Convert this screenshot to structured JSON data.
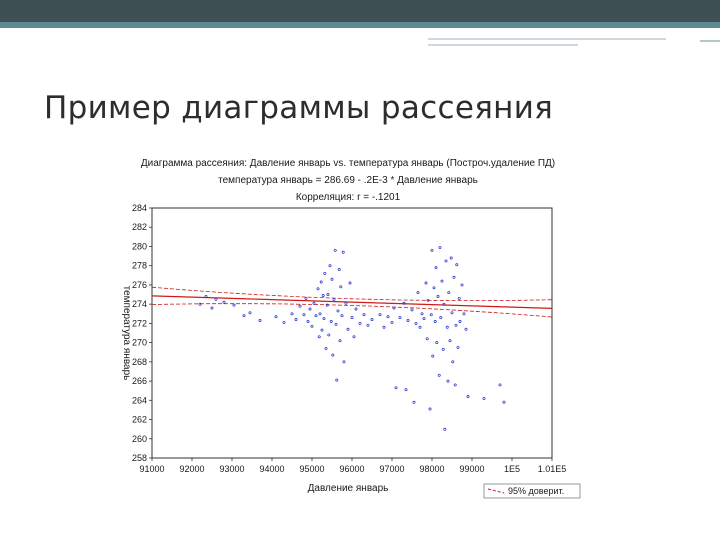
{
  "slide": {
    "title": "Пример диаграммы рассеяния"
  },
  "colors": {
    "topbar": "#3f5054",
    "accent": "#5f8a93",
    "points": "#1f2fd0",
    "regression": "#d01a1a",
    "text": "#1a1a1a"
  },
  "chart_data": {
    "type": "scatter",
    "title": "Диаграмма рассеяния: Давление январь vs. температура январь (Построч.удаление ПД)",
    "subtitle": "температура январь = 286.69 - .2E-3 * Давление январь",
    "annotation": "Корреляция: r = -.1201",
    "xlabel": "Давление январь",
    "ylabel": "температура январь",
    "xlim": [
      91000,
      101000
    ],
    "ylim": [
      258,
      284
    ],
    "x_ticks": [
      "91000",
      "92000",
      "93000",
      "94000",
      "95000",
      "96000",
      "97000",
      "98000",
      "99000",
      "1E5",
      "1.01E5"
    ],
    "y_ticks": [
      "258",
      "260",
      "262",
      "264",
      "266",
      "268",
      "270",
      "272",
      "274",
      "276",
      "278",
      "280",
      "282",
      "284"
    ],
    "legend": "95% доверит.",
    "legend_position": "bottom-right",
    "grid": false,
    "regression": {
      "intercept": 286.69,
      "slope": -0.00013
    },
    "series": [
      {
        "points": [
          [
            92200,
            274.0
          ],
          [
            92350,
            274.8
          ],
          [
            92500,
            273.6
          ],
          [
            92600,
            274.5
          ],
          [
            92800,
            274.2
          ],
          [
            93050,
            273.9
          ],
          [
            93300,
            272.8
          ],
          [
            93450,
            273.1
          ],
          [
            93700,
            272.3
          ],
          [
            94100,
            272.7
          ],
          [
            94300,
            272.1
          ],
          [
            94500,
            273.0
          ],
          [
            94600,
            272.4
          ],
          [
            94700,
            273.8
          ],
          [
            94800,
            272.9
          ],
          [
            94850,
            274.6
          ],
          [
            94900,
            272.2
          ],
          [
            94950,
            273.5
          ],
          [
            95000,
            271.7
          ],
          [
            95050,
            274.1
          ],
          [
            95100,
            272.8
          ],
          [
            95150,
            275.6
          ],
          [
            95180,
            270.6
          ],
          [
            95200,
            273.0
          ],
          [
            95230,
            276.3
          ],
          [
            95250,
            271.3
          ],
          [
            95280,
            274.9
          ],
          [
            95300,
            272.5
          ],
          [
            95320,
            277.2
          ],
          [
            95350,
            269.4
          ],
          [
            95380,
            273.9
          ],
          [
            95400,
            275.0
          ],
          [
            95420,
            270.8
          ],
          [
            95450,
            278.0
          ],
          [
            95480,
            272.2
          ],
          [
            95500,
            276.6
          ],
          [
            95520,
            268.7
          ],
          [
            95550,
            274.5
          ],
          [
            95580,
            279.6
          ],
          [
            95600,
            271.9
          ],
          [
            95620,
            266.1
          ],
          [
            95650,
            273.3
          ],
          [
            95680,
            277.6
          ],
          [
            95700,
            270.2
          ],
          [
            95720,
            275.8
          ],
          [
            95750,
            272.8
          ],
          [
            95780,
            279.4
          ],
          [
            95800,
            268.0
          ],
          [
            95850,
            274.1
          ],
          [
            95900,
            271.4
          ],
          [
            95950,
            276.2
          ],
          [
            96000,
            272.6
          ],
          [
            96050,
            270.6
          ],
          [
            96100,
            273.5
          ],
          [
            96200,
            272.0
          ],
          [
            96300,
            272.9
          ],
          [
            96400,
            271.8
          ],
          [
            96500,
            272.4
          ],
          [
            96700,
            272.9
          ],
          [
            96800,
            271.6
          ],
          [
            96900,
            272.7
          ],
          [
            97000,
            272.1
          ],
          [
            97050,
            273.6
          ],
          [
            97100,
            265.3
          ],
          [
            97200,
            272.6
          ],
          [
            97300,
            274.1
          ],
          [
            97350,
            265.1
          ],
          [
            97400,
            272.3
          ],
          [
            97500,
            273.4
          ],
          [
            97550,
            263.8
          ],
          [
            97600,
            272.0
          ],
          [
            97650,
            275.2
          ],
          [
            97700,
            271.6
          ],
          [
            97750,
            273.0
          ],
          [
            97800,
            272.5
          ],
          [
            97850,
            276.2
          ],
          [
            97880,
            270.4
          ],
          [
            97900,
            274.4
          ],
          [
            97950,
            263.1
          ],
          [
            97980,
            272.9
          ],
          [
            98000,
            279.6
          ],
          [
            98020,
            268.6
          ],
          [
            98050,
            275.7
          ],
          [
            98080,
            272.2
          ],
          [
            98100,
            277.8
          ],
          [
            98120,
            270.0
          ],
          [
            98150,
            274.8
          ],
          [
            98180,
            266.6
          ],
          [
            98200,
            279.9
          ],
          [
            98220,
            272.6
          ],
          [
            98250,
            276.4
          ],
          [
            98280,
            269.3
          ],
          [
            98300,
            274.0
          ],
          [
            98320,
            261.0
          ],
          [
            98350,
            278.5
          ],
          [
            98380,
            271.6
          ],
          [
            98400,
            266.0
          ],
          [
            98420,
            275.2
          ],
          [
            98450,
            270.2
          ],
          [
            98480,
            278.8
          ],
          [
            98500,
            273.1
          ],
          [
            98520,
            268.0
          ],
          [
            98550,
            276.8
          ],
          [
            98580,
            265.6
          ],
          [
            98600,
            271.8
          ],
          [
            98620,
            278.1
          ],
          [
            98650,
            269.5
          ],
          [
            98680,
            274.6
          ],
          [
            98700,
            272.2
          ],
          [
            98750,
            276.0
          ],
          [
            98800,
            273.0
          ],
          [
            98850,
            271.4
          ],
          [
            98900,
            264.4
          ],
          [
            99300,
            264.2
          ],
          [
            99700,
            265.6
          ],
          [
            99800,
            263.8
          ]
        ]
      }
    ]
  }
}
